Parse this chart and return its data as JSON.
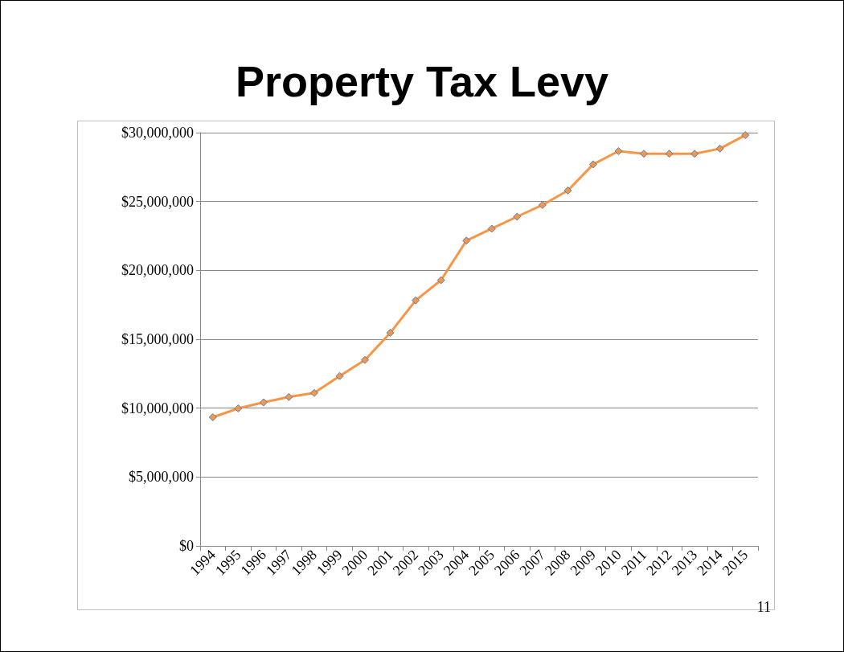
{
  "chart_data": {
    "type": "line",
    "title": "Property Tax Levy",
    "categories": [
      "1994",
      "1995",
      "1996",
      "1997",
      "1998",
      "1999",
      "2000",
      "2001",
      "2002",
      "2003",
      "2004",
      "2005",
      "2006",
      "2007",
      "2008",
      "2009",
      "2010",
      "2011",
      "2012",
      "2013",
      "2014",
      "2015"
    ],
    "series": [
      {
        "color": "#f79646",
        "values": [
          9340000,
          9980000,
          10420000,
          10810000,
          11100000,
          12330000,
          13500000,
          15470000,
          17820000,
          19290000,
          22160000,
          23030000,
          23900000,
          24750000,
          25800000,
          27700000,
          28660000,
          28470000,
          28470000,
          28470000,
          28840000,
          29820000
        ]
      }
    ],
    "ylim": [
      0,
      30000000
    ],
    "yticks": [
      {
        "value": 0,
        "label": "$0"
      },
      {
        "value": 5000000,
        "label": "$5,000,000"
      },
      {
        "value": 10000000,
        "label": "$10,000,000"
      },
      {
        "value": 15000000,
        "label": "$15,000,000"
      },
      {
        "value": 20000000,
        "label": "$20,000,000"
      },
      {
        "value": 25000000,
        "label": "$25,000,000"
      },
      {
        "value": 30000000,
        "label": "$30,000,000"
      }
    ],
    "grid": "y",
    "marker": "diamond",
    "line_style": "solid",
    "annotations": [
      "11"
    ]
  }
}
